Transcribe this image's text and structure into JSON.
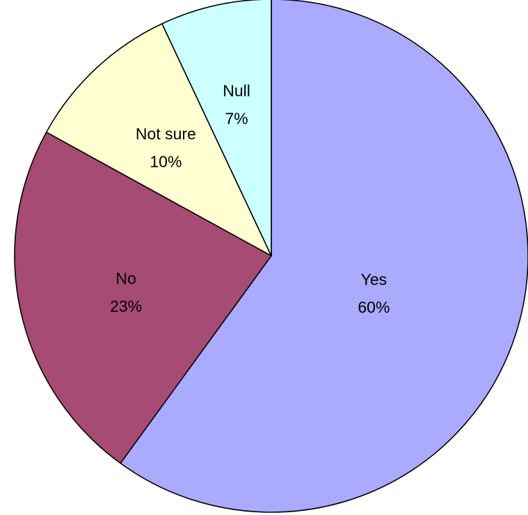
{
  "chart_data": {
    "type": "pie",
    "start_angle_deg": 0,
    "direction": "clockwise",
    "slices": [
      {
        "label": "Yes",
        "value": 60,
        "value_label": "60%",
        "color": "#aaaaff"
      },
      {
        "label": "No",
        "value": 23,
        "value_label": "23%",
        "color": "#a64b73"
      },
      {
        "label": "Not sure",
        "value": 10,
        "value_label": "10%",
        "color": "#ffffd2"
      },
      {
        "label": "Null",
        "value": 7,
        "value_label": "7%",
        "color": "#ccffff"
      }
    ]
  }
}
